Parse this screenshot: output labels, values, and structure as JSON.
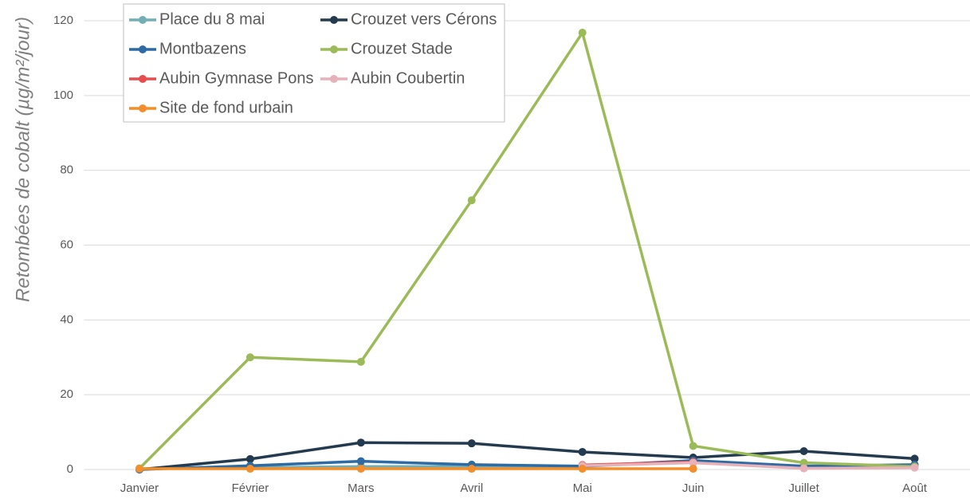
{
  "chart_data": {
    "type": "line",
    "y_label": "Retombées de cobalt (µg/m²/jour)",
    "categories": [
      "Janvier",
      "Février",
      "Mars",
      "Avril",
      "Mai",
      "Juin",
      "Juillet",
      "Août"
    ],
    "ylim": [
      0,
      120
    ],
    "yticks": [
      0,
      20,
      40,
      60,
      80,
      100,
      120
    ],
    "grid": true,
    "legend": "upper left",
    "series": [
      {
        "name": "Place du 8 mai",
        "color": "#72aeb5",
        "values": [
          0.2,
          0.5,
          0.8,
          0.8,
          0.8,
          2.3,
          0.5,
          1.0
        ]
      },
      {
        "name": "Crouzet vers Cérons",
        "color": "#243a4f",
        "values": [
          0,
          2.8,
          7.2,
          7.0,
          4.7,
          3.2,
          4.9,
          2.9
        ]
      },
      {
        "name": "Montbazens",
        "color": "#2e6aa3",
        "values": [
          0,
          1.0,
          2.2,
          1.3,
          0.9,
          2.4,
          0.9,
          1.3
        ]
      },
      {
        "name": "Crouzet Stade",
        "color": "#9bbb59",
        "values": [
          0.3,
          30,
          28.8,
          72,
          116.8,
          6.3,
          1.8,
          0.8
        ]
      },
      {
        "name": "Aubin Gymnase Pons",
        "color": "#e84c4c",
        "values": [
          null,
          null,
          null,
          null,
          1.2,
          2.0,
          null,
          null
        ]
      },
      {
        "name": "Aubin Coubertin",
        "color": "#e6b1b8",
        "values": [
          null,
          null,
          null,
          null,
          1.0,
          1.8,
          0.3,
          0.5
        ]
      },
      {
        "name": "Site de fond urbain",
        "color": "#f28e2b",
        "values": [
          0.2,
          0.2,
          0.2,
          0.2,
          0.2,
          0.2,
          null,
          null
        ]
      }
    ]
  }
}
